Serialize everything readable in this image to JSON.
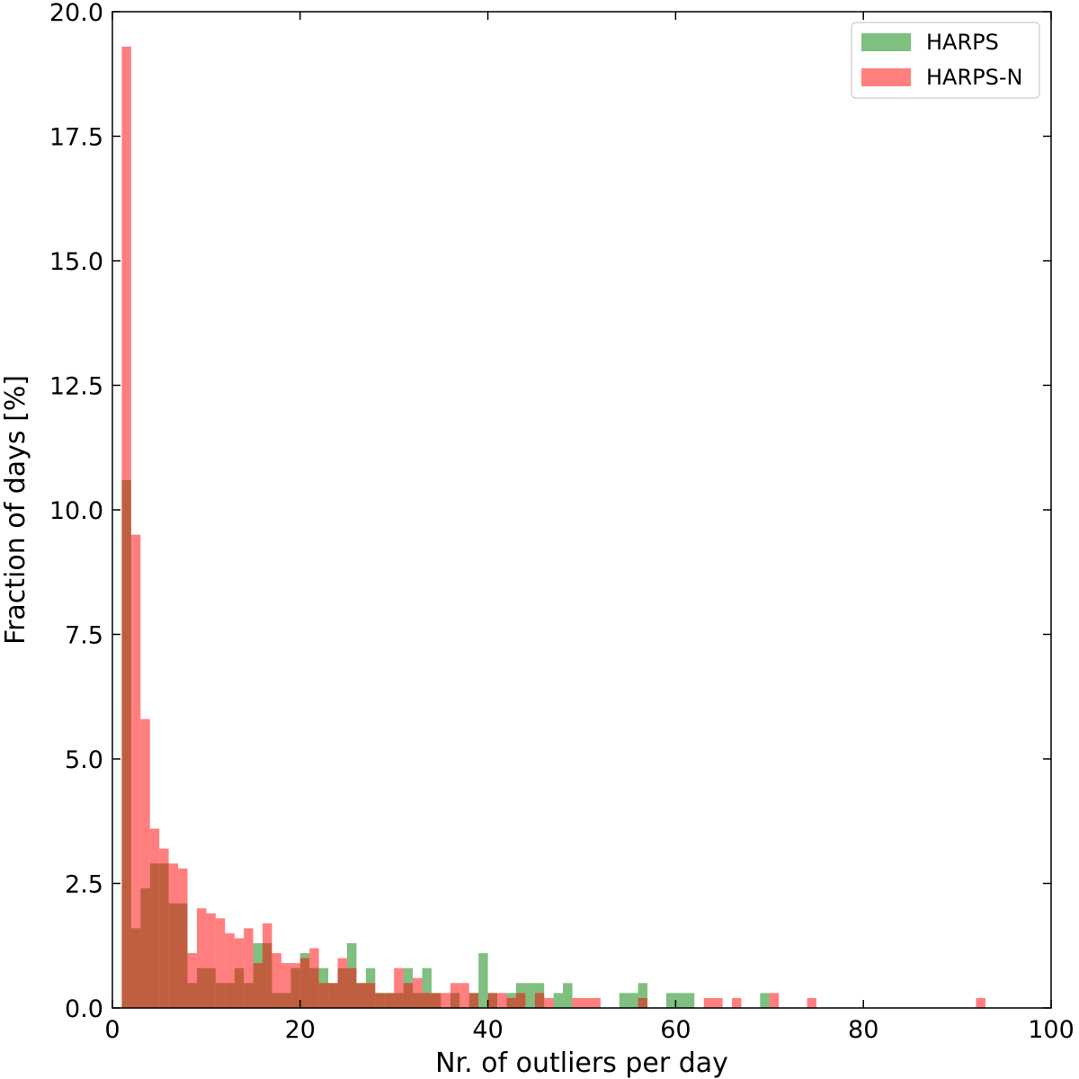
{
  "chart_data": {
    "type": "bar",
    "xlabel": "Nr. of outliers per day",
    "ylabel": "Fraction of days [%]",
    "xlim": [
      0,
      100
    ],
    "ylim": [
      0,
      20
    ],
    "bin_width": 1,
    "grid": false,
    "legend_position": "top-right",
    "x_ticks": [
      0,
      20,
      40,
      60,
      80,
      100
    ],
    "x_tick_labels": [
      "0",
      "20",
      "40",
      "60",
      "80",
      "100"
    ],
    "y_ticks": [
      0,
      2.5,
      5,
      7.5,
      10,
      12.5,
      15,
      17.5,
      20
    ],
    "y_tick_labels": [
      "0.0",
      "2.5",
      "5.0",
      "7.5",
      "10.0",
      "12.5",
      "15.0",
      "17.5",
      "20.0"
    ],
    "series": [
      {
        "name": "HARPS",
        "color": "#008000",
        "opacity": 0.5,
        "bins_left": [
          1,
          2,
          3,
          4,
          5,
          6,
          7,
          8,
          9,
          10,
          11,
          12,
          13,
          14,
          15,
          16,
          17,
          18,
          19,
          20,
          21,
          22,
          23,
          24,
          25,
          26,
          27,
          28,
          29,
          30,
          31,
          32,
          33,
          34,
          35,
          36,
          37,
          38,
          39,
          40,
          41,
          42,
          43,
          44,
          45,
          46,
          47,
          48,
          49,
          50,
          51,
          52,
          53,
          54,
          55,
          56,
          57,
          58,
          59,
          60,
          61,
          62,
          63,
          64,
          65,
          66,
          67,
          68,
          69,
          70
        ],
        "values": [
          10.6,
          1.6,
          2.4,
          2.9,
          2.9,
          2.1,
          2.1,
          0.5,
          0.8,
          0.8,
          0.5,
          0.5,
          0.8,
          0.5,
          1.3,
          1.3,
          0.3,
          0.3,
          0.8,
          1.1,
          0.8,
          0.8,
          0.5,
          0.8,
          1.3,
          0.5,
          0.8,
          0.3,
          0.3,
          0.3,
          0.8,
          0.3,
          0.8,
          0.3,
          0.0,
          0.3,
          0.0,
          0.3,
          1.1,
          0.3,
          0.0,
          0.3,
          0.5,
          0.5,
          0.5,
          0.0,
          0.3,
          0.5,
          0.0,
          0.0,
          0.0,
          0.0,
          0.0,
          0.3,
          0.3,
          0.5,
          0.0,
          0.0,
          0.3,
          0.3,
          0.3,
          0.0,
          0.0,
          0.0,
          0.0,
          0.0,
          0.0,
          0.0,
          0.3,
          0.0
        ]
      },
      {
        "name": "HARPS-N",
        "color": "#ff0000",
        "opacity": 0.5,
        "bins_left": [
          1,
          2,
          3,
          4,
          5,
          6,
          7,
          8,
          9,
          10,
          11,
          12,
          13,
          14,
          15,
          16,
          17,
          18,
          19,
          20,
          21,
          22,
          23,
          24,
          25,
          26,
          27,
          28,
          29,
          30,
          31,
          32,
          33,
          34,
          35,
          36,
          37,
          38,
          39,
          40,
          41,
          42,
          43,
          44,
          45,
          46,
          47,
          48,
          49,
          50,
          51,
          52,
          53,
          54,
          55,
          56,
          57,
          58,
          59,
          60,
          61,
          62,
          63,
          64,
          65,
          66,
          67,
          68,
          69,
          70,
          71,
          72,
          73,
          74,
          75,
          76,
          77,
          78,
          79,
          80,
          81,
          82,
          83,
          84,
          85,
          86,
          87,
          88,
          89,
          90,
          91,
          92
        ],
        "values": [
          19.3,
          9.5,
          5.8,
          3.6,
          3.2,
          2.9,
          2.8,
          1.1,
          2.0,
          1.9,
          1.8,
          1.5,
          1.4,
          1.6,
          0.9,
          1.7,
          1.1,
          0.9,
          0.9,
          1.0,
          1.2,
          0.5,
          0.5,
          1.0,
          0.8,
          0.5,
          0.5,
          0.3,
          0.3,
          0.8,
          0.5,
          0.6,
          0.3,
          0.3,
          0.3,
          0.5,
          0.5,
          0.3,
          0.0,
          0.3,
          0.3,
          0.2,
          0.3,
          0.0,
          0.3,
          0.2,
          0.0,
          0.0,
          0.2,
          0.2,
          0.2,
          0.0,
          0.0,
          0.0,
          0.0,
          0.2,
          0.0,
          0.0,
          0.0,
          0.0,
          0.0,
          0.0,
          0.2,
          0.2,
          0.0,
          0.2,
          0.0,
          0.0,
          0.0,
          0.3,
          0.0,
          0.0,
          0.0,
          0.2,
          0.0,
          0.0,
          0.0,
          0.0,
          0.0,
          0.0,
          0.0,
          0.0,
          0.0,
          0.0,
          0.0,
          0.0,
          0.0,
          0.0,
          0.0,
          0.0,
          0.0,
          0.2
        ]
      }
    ]
  }
}
